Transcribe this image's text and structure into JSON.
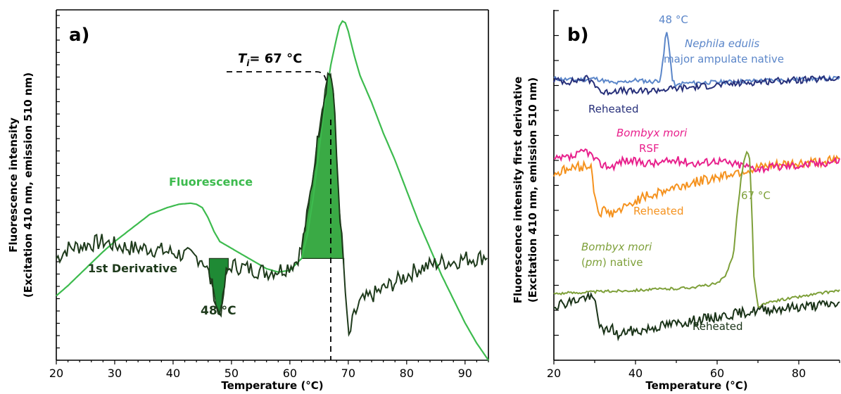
{
  "colors": {
    "fluorescence": "#3dbb4e",
    "derivative": "#1e3a1b",
    "fill_peak": "#3aaa45",
    "fill_dip": "#1f8a35",
    "nephila_native": "#5b86c9",
    "nephila_reheated": "#27307a",
    "bombyx_rsf": "#e8208c",
    "bombyx_rsf_reheated": "#f5921e",
    "bombyx_pm_native": "#7ea03a",
    "bombyx_pm_reheated": "#1a3318"
  },
  "chart_data": [
    {
      "type": "line",
      "panel_label": "a)",
      "xlabel": "Temperature (°C)",
      "ylabel_line1": "Fluorescence intensity",
      "ylabel_line2": "(Excitation 410 nm, emission 510 nm)",
      "xlim": [
        20,
        94
      ],
      "xticks": [
        20,
        30,
        40,
        50,
        60,
        70,
        80,
        90
      ],
      "ylim": [
        0,
        1
      ],
      "series": [
        {
          "name": "Fluorescence",
          "x": [
            20,
            22,
            25,
            28,
            30,
            33,
            36,
            39,
            41,
            43,
            44,
            45,
            46,
            47,
            48,
            50,
            52,
            54,
            56,
            58,
            60,
            62,
            63,
            64,
            65,
            66,
            67,
            68,
            68.5,
            69,
            69.5,
            70,
            71,
            72,
            74,
            76,
            78,
            80,
            82,
            84,
            86,
            88,
            90,
            92,
            94
          ],
          "y": [
            0.19,
            0.22,
            0.27,
            0.32,
            0.35,
            0.39,
            0.43,
            0.45,
            0.46,
            0.463,
            0.46,
            0.45,
            0.42,
            0.38,
            0.35,
            0.33,
            0.31,
            0.29,
            0.27,
            0.26,
            0.265,
            0.3,
            0.37,
            0.48,
            0.62,
            0.76,
            0.87,
            0.95,
            0.985,
            1.0,
            0.995,
            0.97,
            0.9,
            0.84,
            0.76,
            0.67,
            0.59,
            0.5,
            0.41,
            0.33,
            0.25,
            0.18,
            0.11,
            0.05,
            0.0
          ]
        },
        {
          "name": "1st Derivative",
          "x": [
            20,
            22,
            25,
            28,
            30,
            33,
            36,
            39,
            42,
            45,
            46,
            47,
            47.5,
            48,
            48.5,
            49,
            50,
            53,
            56,
            59,
            61,
            62,
            63,
            64,
            65,
            66,
            66.5,
            67,
            67.5,
            68,
            68.5,
            69,
            69.5,
            70,
            71,
            72,
            74,
            76,
            78,
            80,
            82,
            84,
            86,
            88,
            90,
            92,
            94
          ],
          "y": [
            0.3,
            0.33,
            0.34,
            0.35,
            0.34,
            0.33,
            0.33,
            0.32,
            0.31,
            0.3,
            0.26,
            0.2,
            0.15,
            0.14,
            0.17,
            0.25,
            0.28,
            0.27,
            0.26,
            0.27,
            0.29,
            0.33,
            0.43,
            0.55,
            0.68,
            0.79,
            0.84,
            0.85,
            0.78,
            0.6,
            0.45,
            0.33,
            0.2,
            0.06,
            0.13,
            0.17,
            0.19,
            0.21,
            0.23,
            0.25,
            0.27,
            0.28,
            0.29,
            0.29,
            0.3,
            0.3,
            0.31
          ]
        }
      ],
      "annotations": {
        "ti_prefix": "T",
        "ti_subscript": "i",
        "ti_value": "= 67 °C",
        "dip_label": "48 °C",
        "fluorescence_label": "Fluorescence",
        "derivative_label": "1st Derivative",
        "ti_temperature": 67,
        "dip_temperature": 48
      }
    },
    {
      "type": "line",
      "panel_label": "b)",
      "xlabel": "Temperature (°C)",
      "ylabel_line1": "Fluorescence intensity first derivative",
      "ylabel_line2": "(Excitation 410 nm, emission 510 nm)",
      "xlim": [
        20,
        90
      ],
      "xticks": [
        20,
        40,
        60,
        80
      ],
      "ylim": [
        0,
        1
      ],
      "series": [
        {
          "name": "Nephila edulis major ampulate native",
          "x": [
            20,
            25,
            30,
            35,
            40,
            44,
            46,
            46.8,
            47.5,
            48.2,
            49,
            50,
            51,
            55,
            60,
            65,
            70,
            75,
            80,
            85,
            90
          ],
          "y": [
            0.845,
            0.84,
            0.845,
            0.83,
            0.84,
            0.835,
            0.84,
            0.9,
            0.99,
            0.95,
            0.84,
            0.82,
            0.83,
            0.832,
            0.834,
            0.836,
            0.838,
            0.84,
            0.842,
            0.844,
            0.846
          ]
        },
        {
          "name": "Reheated",
          "x": [
            20,
            24,
            28,
            30,
            32,
            35,
            40,
            45,
            50,
            55,
            60,
            65,
            70,
            75,
            80,
            85,
            90
          ],
          "y": [
            0.84,
            0.835,
            0.845,
            0.83,
            0.8,
            0.81,
            0.805,
            0.81,
            0.815,
            0.82,
            0.825,
            0.83,
            0.835,
            0.838,
            0.84,
            0.842,
            0.845
          ]
        },
        {
          "name": "Bombyx mori RSF",
          "x": [
            20,
            25,
            28,
            31,
            34,
            37,
            40,
            45,
            50,
            55,
            60,
            63,
            66,
            70,
            75,
            80,
            85,
            90
          ],
          "y": [
            0.6,
            0.61,
            0.63,
            0.59,
            0.58,
            0.6,
            0.595,
            0.59,
            0.6,
            0.59,
            0.6,
            0.59,
            0.585,
            0.575,
            0.58,
            0.585,
            0.59,
            0.6
          ]
        },
        {
          "name": "Reheated",
          "x": [
            20,
            24,
            29,
            30,
            31,
            32,
            34,
            36,
            38,
            40,
            45,
            50,
            55,
            60,
            65,
            70,
            75,
            80,
            85,
            90
          ],
          "y": [
            0.56,
            0.575,
            0.585,
            0.5,
            0.44,
            0.45,
            0.44,
            0.45,
            0.46,
            0.48,
            0.5,
            0.52,
            0.535,
            0.55,
            0.565,
            0.575,
            0.585,
            0.59,
            0.595,
            0.6
          ]
        },
        {
          "name": "Bombyx mori (pm) native",
          "x": [
            20,
            30,
            40,
            50,
            55,
            60,
            62,
            64,
            65,
            66,
            67,
            67.5,
            68,
            68.5,
            69,
            70,
            72,
            75,
            80,
            85,
            90
          ],
          "y": [
            0.2,
            0.205,
            0.21,
            0.215,
            0.22,
            0.23,
            0.25,
            0.32,
            0.45,
            0.56,
            0.62,
            0.625,
            0.6,
            0.45,
            0.25,
            0.16,
            0.17,
            0.18,
            0.19,
            0.2,
            0.21
          ]
        },
        {
          "name": "Reheated",
          "x": [
            20,
            24,
            28,
            30,
            31,
            32,
            34,
            36,
            38,
            40,
            45,
            50,
            55,
            60,
            65,
            70,
            75,
            80,
            85,
            90
          ],
          "y": [
            0.165,
            0.175,
            0.19,
            0.18,
            0.12,
            0.08,
            0.1,
            0.07,
            0.09,
            0.085,
            0.1,
            0.11,
            0.12,
            0.13,
            0.14,
            0.15,
            0.155,
            0.16,
            0.165,
            0.17
          ]
        }
      ],
      "annotations": {
        "peak1_label": "48 °C",
        "nephila_name": "Nephila edulis",
        "nephila_desc": "major ampulate native",
        "reheated1": "Reheated",
        "bombyx_rsf_name": "Bombyx mori",
        "bombyx_rsf_desc": "RSF",
        "reheated2": "Reheated",
        "peak2_label": "67 °C",
        "bombyx_pm_name": "Bombyx mori",
        "bombyx_pm_paren_open": "(",
        "bombyx_pm_pm": "pm",
        "bombyx_pm_rest": ") native",
        "reheated3": "Reheated"
      }
    }
  ]
}
